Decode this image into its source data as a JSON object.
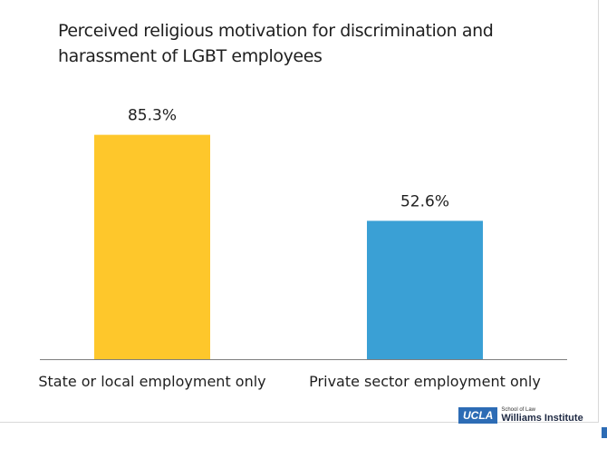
{
  "chart_data": {
    "type": "bar",
    "title": "Perceived religious motivation for discrimination and harassment of LGBT employees",
    "categories": [
      "State or local employment only",
      "Private sector employment only"
    ],
    "values": [
      85.3,
      52.6
    ],
    "value_labels": [
      "85.3%",
      "52.6%"
    ],
    "colors": [
      "#fec72b",
      "#3aa0d5"
    ],
    "ylim": [
      0,
      100
    ],
    "grid": false,
    "legend": "none",
    "xlabel": "",
    "ylabel": ""
  },
  "logo": {
    "mark": "UCLA",
    "small": "School of Law",
    "name": "Williams Institute"
  }
}
